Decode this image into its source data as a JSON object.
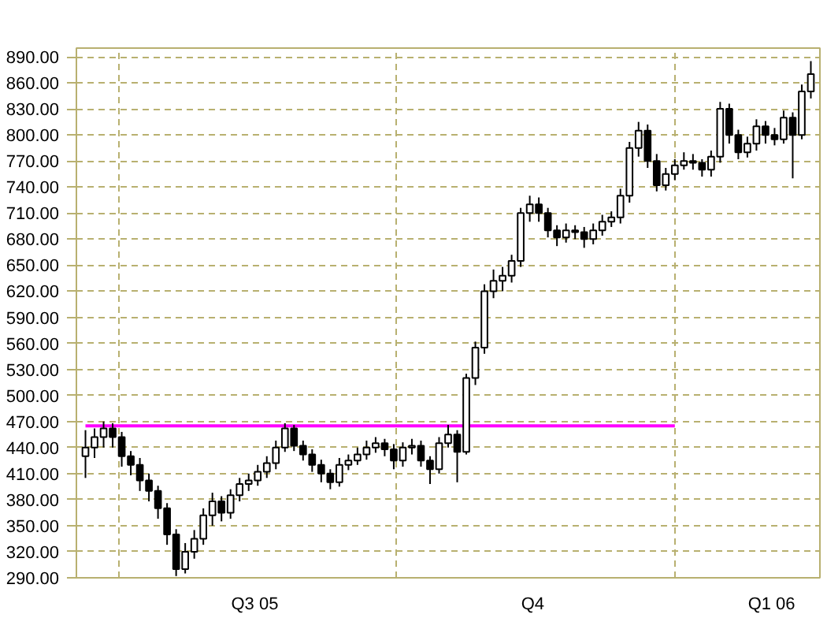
{
  "chart_data": {
    "type": "candlestick",
    "x": [
      "2005-06-20",
      "2005-06-23",
      "2005-06-26",
      "2005-06-29",
      "2005-07-02",
      "2005-07-05",
      "2005-07-08",
      "2005-07-11",
      "2005-07-14",
      "2005-07-17",
      "2005-07-20",
      "2005-07-23",
      "2005-07-26",
      "2005-07-29",
      "2005-08-01",
      "2005-08-04",
      "2005-08-07",
      "2005-08-10",
      "2005-08-13",
      "2005-08-16",
      "2005-08-19",
      "2005-08-22",
      "2005-08-25",
      "2005-08-28",
      "2005-08-31",
      "2005-09-03",
      "2005-09-06",
      "2005-09-09",
      "2005-09-12",
      "2005-09-15",
      "2005-09-18",
      "2005-09-21",
      "2005-09-24",
      "2005-09-27",
      "2005-09-30",
      "2005-10-03",
      "2005-10-06",
      "2005-10-09",
      "2005-10-12",
      "2005-10-15",
      "2005-10-18",
      "2005-10-21",
      "2005-10-24",
      "2005-10-27",
      "2005-10-30",
      "2005-11-02",
      "2005-11-05",
      "2005-11-08",
      "2005-11-11",
      "2005-11-14",
      "2005-11-17",
      "2005-11-20",
      "2005-11-23",
      "2005-11-26",
      "2005-11-29",
      "2005-12-02",
      "2005-12-05",
      "2005-12-08",
      "2005-12-11",
      "2005-12-14",
      "2005-12-17",
      "2005-12-20",
      "2005-12-23",
      "2005-12-26",
      "2005-12-29",
      "2006-01-01",
      "2006-01-04",
      "2006-01-07",
      "2006-01-10",
      "2006-01-13",
      "2006-01-16",
      "2006-01-19",
      "2006-01-22",
      "2006-01-25",
      "2006-01-28",
      "2006-01-31",
      "2006-02-03",
      "2006-02-06",
      "2006-02-09",
      "2006-02-12",
      "2006-02-15"
    ],
    "ohlc": [
      [
        430,
        460,
        405,
        440
      ],
      [
        440,
        462,
        428,
        452
      ],
      [
        452,
        470,
        440,
        462
      ],
      [
        462,
        468,
        440,
        452
      ],
      [
        452,
        458,
        418,
        430
      ],
      [
        430,
        436,
        408,
        420
      ],
      [
        420,
        428,
        390,
        402
      ],
      [
        402,
        410,
        378,
        390
      ],
      [
        390,
        396,
        358,
        370
      ],
      [
        370,
        376,
        328,
        340
      ],
      [
        340,
        346,
        292,
        300
      ],
      [
        300,
        330,
        295,
        320
      ],
      [
        320,
        345,
        312,
        335
      ],
      [
        335,
        370,
        328,
        362
      ],
      [
        362,
        388,
        350,
        378
      ],
      [
        378,
        384,
        355,
        365
      ],
      [
        365,
        392,
        358,
        385
      ],
      [
        385,
        405,
        378,
        398
      ],
      [
        398,
        410,
        390,
        402
      ],
      [
        402,
        420,
        396,
        412
      ],
      [
        412,
        430,
        405,
        422
      ],
      [
        422,
        448,
        415,
        440
      ],
      [
        440,
        468,
        435,
        462
      ],
      [
        462,
        466,
        436,
        442
      ],
      [
        442,
        448,
        425,
        432
      ],
      [
        432,
        438,
        412,
        420
      ],
      [
        420,
        426,
        400,
        410
      ],
      [
        410,
        415,
        392,
        400
      ],
      [
        400,
        428,
        395,
        420
      ],
      [
        420,
        432,
        414,
        425
      ],
      [
        425,
        440,
        420,
        432
      ],
      [
        432,
        448,
        426,
        440
      ],
      [
        440,
        452,
        434,
        445
      ],
      [
        445,
        450,
        430,
        438
      ],
      [
        438,
        444,
        415,
        425
      ],
      [
        425,
        446,
        418,
        440
      ],
      [
        440,
        450,
        432,
        442
      ],
      [
        442,
        448,
        418,
        425
      ],
      [
        425,
        430,
        398,
        415
      ],
      [
        415,
        452,
        410,
        445
      ],
      [
        445,
        466,
        440,
        455
      ],
      [
        455,
        460,
        400,
        435
      ],
      [
        435,
        525,
        432,
        520
      ],
      [
        520,
        562,
        512,
        555
      ],
      [
        555,
        628,
        548,
        620
      ],
      [
        620,
        645,
        612,
        632
      ],
      [
        632,
        648,
        620,
        638
      ],
      [
        638,
        662,
        630,
        655
      ],
      [
        655,
        716,
        648,
        710
      ],
      [
        710,
        730,
        700,
        720
      ],
      [
        720,
        728,
        700,
        710
      ],
      [
        710,
        716,
        682,
        690
      ],
      [
        690,
        696,
        672,
        682
      ],
      [
        682,
        698,
        676,
        690
      ],
      [
        690,
        696,
        680,
        688
      ],
      [
        688,
        694,
        670,
        680
      ],
      [
        680,
        698,
        674,
        690
      ],
      [
        690,
        708,
        684,
        700
      ],
      [
        700,
        712,
        694,
        705
      ],
      [
        705,
        738,
        698,
        730
      ],
      [
        730,
        792,
        722,
        785
      ],
      [
        785,
        815,
        775,
        805
      ],
      [
        805,
        812,
        762,
        770
      ],
      [
        770,
        778,
        735,
        742
      ],
      [
        742,
        762,
        736,
        755
      ],
      [
        755,
        772,
        748,
        765
      ],
      [
        765,
        780,
        760,
        770
      ],
      [
        770,
        778,
        760,
        768
      ],
      [
        768,
        772,
        752,
        760
      ],
      [
        760,
        782,
        752,
        775
      ],
      [
        775,
        838,
        768,
        830
      ],
      [
        830,
        836,
        790,
        800
      ],
      [
        800,
        806,
        772,
        780
      ],
      [
        780,
        798,
        774,
        790
      ],
      [
        790,
        818,
        782,
        810
      ],
      [
        810,
        816,
        790,
        800
      ],
      [
        800,
        808,
        788,
        795
      ],
      [
        795,
        828,
        790,
        820
      ],
      [
        820,
        826,
        750,
        800
      ],
      [
        800,
        858,
        795,
        850
      ],
      [
        850,
        885,
        842,
        870
      ]
    ],
    "color": "#000000",
    "series": [
      {
        "type": "line",
        "x": [
          "2005-06-20",
          "2006-01-01"
        ],
        "values": [
          465,
          465
        ],
        "color": "#ff00ff"
      }
    ],
    "xlim": [
      "2005-06-17",
      "2006-02-18"
    ],
    "xticks": [
      {
        "value": "2005-07-01",
        "label": null
      },
      {
        "value": "2005-08-15",
        "label": "Q3 05"
      },
      {
        "value": "2005-10-01",
        "label": null
      },
      {
        "value": "2005-11-15",
        "label": "Q4"
      },
      {
        "value": "2006-01-01",
        "label": null
      },
      {
        "value": "2006-02-02",
        "label": "Q1 06"
      }
    ],
    "ylim": [
      290,
      900
    ],
    "yticks": [
      {
        "value": 290,
        "label": "290.00"
      },
      {
        "value": 320,
        "label": "320.00"
      },
      {
        "value": 350,
        "label": "350.00"
      },
      {
        "value": 380,
        "label": "380.00"
      },
      {
        "value": 410,
        "label": "410.00"
      },
      {
        "value": 440,
        "label": "440.00"
      },
      {
        "value": 470,
        "label": "470.00"
      },
      {
        "value": 500,
        "label": "500.00"
      },
      {
        "value": 530,
        "label": "530.00"
      },
      {
        "value": 560,
        "label": "560.00"
      },
      {
        "value": 590,
        "label": "590.00"
      },
      {
        "value": 620,
        "label": "620.00"
      },
      {
        "value": 650,
        "label": "650.00"
      },
      {
        "value": 680,
        "label": "680.00"
      },
      {
        "value": 710,
        "label": "710.00"
      },
      {
        "value": 740,
        "label": "740.00"
      },
      {
        "value": 770,
        "label": "770.00"
      },
      {
        "value": 800,
        "label": "800.00"
      },
      {
        "value": 830,
        "label": "830.00"
      },
      {
        "value": 860,
        "label": "860.00"
      },
      {
        "value": 890,
        "label": "890.00"
      }
    ],
    "grid": true
  }
}
